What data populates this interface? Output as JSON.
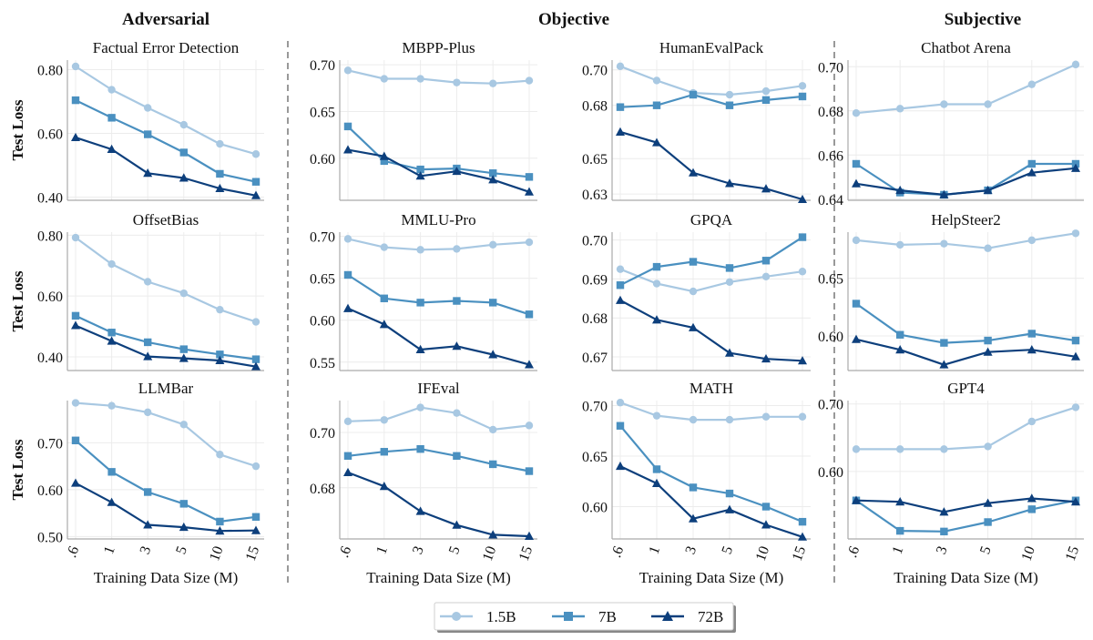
{
  "groups": [
    {
      "label": "Adversarial"
    },
    {
      "label": "Objective"
    },
    {
      "label": "Subjective"
    }
  ],
  "y_axis_label": "Test Loss",
  "x_axis_label": "Training Data Size (M)",
  "x_ticks": [
    ".6",
    "1",
    "3",
    "5",
    "10",
    "15"
  ],
  "legend": [
    {
      "name": "1.5B",
      "color": "#a8c8e2",
      "marker": "circle"
    },
    {
      "name": "7B",
      "color": "#4a90c0",
      "marker": "square"
    },
    {
      "name": "72B",
      "color": "#0d3f7c",
      "marker": "triangle"
    }
  ],
  "chart_data": [
    {
      "type": "line",
      "title": "Factual Error Detection",
      "ylim": [
        0.39,
        0.83
      ],
      "yticks": [
        0.4,
        0.6,
        0.8
      ],
      "ytick_labels": [
        "0.40",
        "0.60",
        "0.80"
      ],
      "series": [
        {
          "name": "1.5B",
          "values": [
            0.81,
            0.737,
            0.68,
            0.627,
            0.567,
            0.535
          ]
        },
        {
          "name": "7B",
          "values": [
            0.704,
            0.649,
            0.597,
            0.54,
            0.473,
            0.448
          ]
        },
        {
          "name": "72B",
          "values": [
            0.587,
            0.55,
            0.475,
            0.46,
            0.427,
            0.405
          ]
        }
      ]
    },
    {
      "type": "line",
      "title": "MBPP-Plus",
      "ylim": [
        0.555,
        0.705
      ],
      "yticks": [
        0.6,
        0.65,
        0.7
      ],
      "ytick_labels": [
        "0.60",
        "0.65",
        "0.70"
      ],
      "series": [
        {
          "name": "1.5B",
          "values": [
            0.694,
            0.685,
            0.685,
            0.681,
            0.68,
            0.683
          ]
        },
        {
          "name": "7B",
          "values": [
            0.634,
            0.597,
            0.588,
            0.589,
            0.584,
            0.58
          ]
        },
        {
          "name": "72B",
          "values": [
            0.609,
            0.602,
            0.581,
            0.586,
            0.577,
            0.564
          ]
        }
      ]
    },
    {
      "type": "line",
      "title": "HumanEvalPack",
      "ylim": [
        0.6265,
        0.7055
      ],
      "yticks": [
        0.63,
        0.65,
        0.68,
        0.7
      ],
      "ytick_labels": [
        "0.63",
        "0.65",
        "0.68",
        "0.70"
      ],
      "series": [
        {
          "name": "1.5B",
          "values": [
            0.702,
            0.694,
            0.687,
            0.686,
            0.688,
            0.691
          ]
        },
        {
          "name": "7B",
          "values": [
            0.679,
            0.68,
            0.686,
            0.68,
            0.683,
            0.685
          ]
        },
        {
          "name": "72B",
          "values": [
            0.665,
            0.659,
            0.642,
            0.636,
            0.633,
            0.627
          ]
        }
      ]
    },
    {
      "type": "line",
      "title": "Chatbot Arena",
      "ylim": [
        0.6395,
        0.703
      ],
      "yticks": [
        0.64,
        0.66,
        0.68,
        0.7
      ],
      "ytick_labels": [
        "0.64",
        "0.66",
        "0.68",
        "0.70"
      ],
      "series": [
        {
          "name": "1.5B",
          "values": [
            0.679,
            0.681,
            0.683,
            0.683,
            0.692,
            0.701
          ]
        },
        {
          "name": "7B",
          "values": [
            0.656,
            0.643,
            0.642,
            0.644,
            0.656,
            0.656
          ]
        },
        {
          "name": "72B",
          "values": [
            0.647,
            0.644,
            0.642,
            0.644,
            0.652,
            0.654
          ]
        }
      ]
    },
    {
      "type": "line",
      "title": "OffsetBias",
      "ylim": [
        0.355,
        0.81
      ],
      "yticks": [
        0.4,
        0.6,
        0.8
      ],
      "ytick_labels": [
        "0.40",
        "0.60",
        "0.80"
      ],
      "series": [
        {
          "name": "1.5B",
          "values": [
            0.792,
            0.705,
            0.647,
            0.609,
            0.555,
            0.515
          ]
        },
        {
          "name": "7B",
          "values": [
            0.535,
            0.48,
            0.448,
            0.425,
            0.408,
            0.392
          ]
        },
        {
          "name": "72B",
          "values": [
            0.503,
            0.452,
            0.401,
            0.395,
            0.388,
            0.368
          ]
        }
      ]
    },
    {
      "type": "line",
      "title": "MMLU-Pro",
      "ylim": [
        0.54,
        0.705
      ],
      "yticks": [
        0.55,
        0.6,
        0.65,
        0.7
      ],
      "ytick_labels": [
        "0.55",
        "0.60",
        "0.65",
        "0.70"
      ],
      "series": [
        {
          "name": "1.5B",
          "values": [
            0.697,
            0.687,
            0.684,
            0.685,
            0.69,
            0.693
          ]
        },
        {
          "name": "7B",
          "values": [
            0.654,
            0.626,
            0.621,
            0.623,
            0.621,
            0.607
          ]
        },
        {
          "name": "72B",
          "values": [
            0.614,
            0.595,
            0.565,
            0.569,
            0.559,
            0.547
          ]
        }
      ]
    },
    {
      "type": "line",
      "title": "GPQA",
      "ylim": [
        0.6665,
        0.702
      ],
      "yticks": [
        0.67,
        0.68,
        0.69,
        0.7
      ],
      "ytick_labels": [
        "0.67",
        "0.68",
        "0.69",
        "0.70"
      ],
      "series": [
        {
          "name": "1.5B",
          "values": [
            0.6925,
            0.6888,
            0.6868,
            0.6892,
            0.6906,
            0.6919
          ]
        },
        {
          "name": "7B",
          "values": [
            0.6884,
            0.6931,
            0.6944,
            0.6928,
            0.6947,
            0.7007
          ]
        },
        {
          "name": "72B",
          "values": [
            0.6845,
            0.6795,
            0.6775,
            0.671,
            0.6695,
            0.669
          ]
        }
      ]
    },
    {
      "type": "line",
      "title": "HelpSteer2",
      "ylim": [
        0.57,
        0.69
      ],
      "yticks": [
        0.6,
        0.65
      ],
      "ytick_labels": [
        "0.60",
        "0.65"
      ],
      "series": [
        {
          "name": "1.5B",
          "values": [
            0.683,
            0.679,
            0.68,
            0.676,
            0.683,
            0.689
          ]
        },
        {
          "name": "7B",
          "values": [
            0.628,
            0.601,
            0.594,
            0.596,
            0.602,
            0.596
          ]
        },
        {
          "name": "72B",
          "values": [
            0.597,
            0.588,
            0.575,
            0.586,
            0.588,
            0.582
          ]
        }
      ]
    },
    {
      "type": "line",
      "title": "LLMBar",
      "ylim": [
        0.495,
        0.79
      ],
      "yticks": [
        0.5,
        0.6,
        0.7
      ],
      "ytick_labels": [
        "0.50",
        "0.60",
        "0.70"
      ],
      "series": [
        {
          "name": "1.5B",
          "values": [
            0.785,
            0.779,
            0.765,
            0.739,
            0.675,
            0.65
          ]
        },
        {
          "name": "7B",
          "values": [
            0.705,
            0.638,
            0.595,
            0.57,
            0.532,
            0.542
          ]
        },
        {
          "name": "72B",
          "values": [
            0.614,
            0.573,
            0.525,
            0.52,
            0.512,
            0.513
          ]
        }
      ]
    },
    {
      "type": "line",
      "title": "IFEval",
      "ylim": [
        0.6615,
        0.7115
      ],
      "yticks": [
        0.68,
        0.7
      ],
      "ytick_labels": [
        "0.68",
        "0.70"
      ],
      "series": [
        {
          "name": "1.5B",
          "values": [
            0.704,
            0.7045,
            0.709,
            0.707,
            0.701,
            0.7025
          ]
        },
        {
          "name": "7B",
          "values": [
            0.6915,
            0.693,
            0.694,
            0.6915,
            0.6885,
            0.686
          ]
        },
        {
          "name": "72B",
          "values": [
            0.6855,
            0.6805,
            0.6715,
            0.6665,
            0.663,
            0.6625
          ]
        }
      ]
    },
    {
      "type": "line",
      "title": "MATH",
      "ylim": [
        0.568,
        0.705
      ],
      "yticks": [
        0.6,
        0.65,
        0.7
      ],
      "ytick_labels": [
        "0.60",
        "0.65",
        "0.70"
      ],
      "series": [
        {
          "name": "1.5B",
          "values": [
            0.703,
            0.69,
            0.686,
            0.686,
            0.689,
            0.689
          ]
        },
        {
          "name": "7B",
          "values": [
            0.68,
            0.637,
            0.619,
            0.613,
            0.6,
            0.585
          ]
        },
        {
          "name": "72B",
          "values": [
            0.64,
            0.623,
            0.588,
            0.597,
            0.582,
            0.57
          ]
        }
      ]
    },
    {
      "type": "line",
      "title": "GPT4",
      "ylim": [
        0.5,
        0.705
      ],
      "yticks": [
        0.6,
        0.7
      ],
      "ytick_labels": [
        "0.60",
        "0.70"
      ],
      "series": [
        {
          "name": "1.5B",
          "values": [
            0.633,
            0.633,
            0.633,
            0.637,
            0.674,
            0.695
          ]
        },
        {
          "name": "7B",
          "values": [
            0.557,
            0.512,
            0.511,
            0.525,
            0.544,
            0.557
          ]
        },
        {
          "name": "72B",
          "values": [
            0.557,
            0.555,
            0.54,
            0.553,
            0.56,
            0.555
          ]
        }
      ]
    }
  ]
}
